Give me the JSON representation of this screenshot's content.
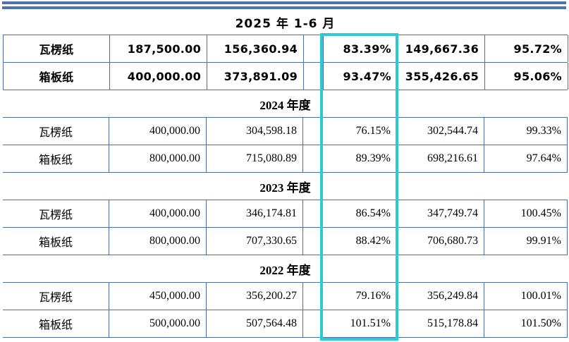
{
  "decor": {
    "top_rule_color": "#4e73b4",
    "table_border_color": "#4e6fa3"
  },
  "annotation": {
    "highlight_box_color": "#2bcad4",
    "highlighted_column_values": [
      "83.39%",
      "93.47%",
      "76.15%",
      "89.39%",
      "86.54%",
      "88.42%",
      "79.16%",
      "101.51%"
    ]
  },
  "table": {
    "sections": [
      {
        "header": "2025 年 1-6 月",
        "rows": [
          {
            "name": "瓦楞纸",
            "values": [
              "187,500.00",
              "156,360.94",
              "83.39%",
              "149,667.36",
              "95.72%"
            ]
          },
          {
            "name": "箱板纸",
            "values": [
              "400,000.00",
              "373,891.09",
              "93.47%",
              "355,426.65",
              "95.06%"
            ]
          }
        ]
      },
      {
        "header": "2024 年度",
        "rows": [
          {
            "name": "瓦楞纸",
            "values": [
              "400,000.00",
              "304,598.18",
              "76.15%",
              "302,544.74",
              "99.33%"
            ]
          },
          {
            "name": "箱板纸",
            "values": [
              "800,000.00",
              "715,080.89",
              "89.39%",
              "698,216.61",
              "97.64%"
            ]
          }
        ]
      },
      {
        "header": "2023 年度",
        "rows": [
          {
            "name": "瓦楞纸",
            "values": [
              "400,000.00",
              "346,174.81",
              "86.54%",
              "347,749.74",
              "100.45%"
            ]
          },
          {
            "name": "箱板纸",
            "values": [
              "800,000.00",
              "707,330.65",
              "88.42%",
              "706,680.73",
              "99.91%"
            ]
          }
        ]
      },
      {
        "header": "2022 年度",
        "rows": [
          {
            "name": "瓦楞纸",
            "values": [
              "450,000.00",
              "356,200.27",
              "79.16%",
              "356,249.84",
              "100.01%"
            ]
          },
          {
            "name": "箱板纸",
            "values": [
              "500,000.00",
              "507,564.48",
              "101.51%",
              "515,178.84",
              "101.50%"
            ]
          }
        ]
      }
    ]
  }
}
